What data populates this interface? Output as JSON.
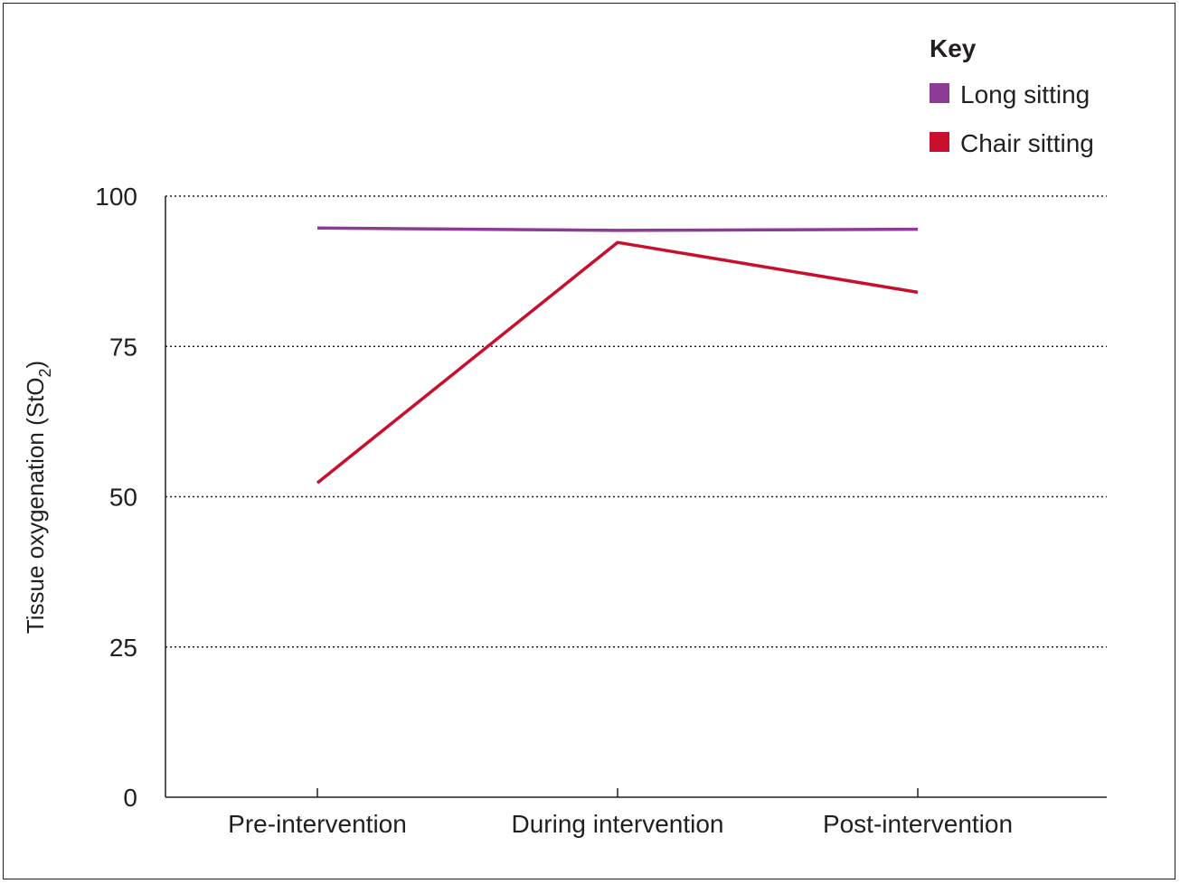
{
  "chart_data": {
    "type": "line",
    "categories": [
      "Pre-intervention",
      "During intervention",
      "Post-intervention"
    ],
    "series": [
      {
        "name": "Long sitting",
        "values": [
          94.7,
          94.3,
          94.5
        ],
        "color": "#8d3b97"
      },
      {
        "name": "Chair sitting",
        "values": [
          52.3,
          92.3,
          84.0
        ],
        "color": "#c8102e"
      }
    ],
    "ylabel": "Tissue oxygenation (StO",
    "ylabel_subscript": "2",
    "ylabel_suffix": ")",
    "xlabel": "",
    "ylim": [
      0,
      100
    ],
    "yticks": [
      "0",
      "25",
      "50",
      "75",
      "100"
    ],
    "ytick_values": [
      0,
      25,
      50,
      75,
      100
    ],
    "grid": "horizontal dotted",
    "legend": {
      "title": "Key",
      "placement": "top-right"
    }
  }
}
